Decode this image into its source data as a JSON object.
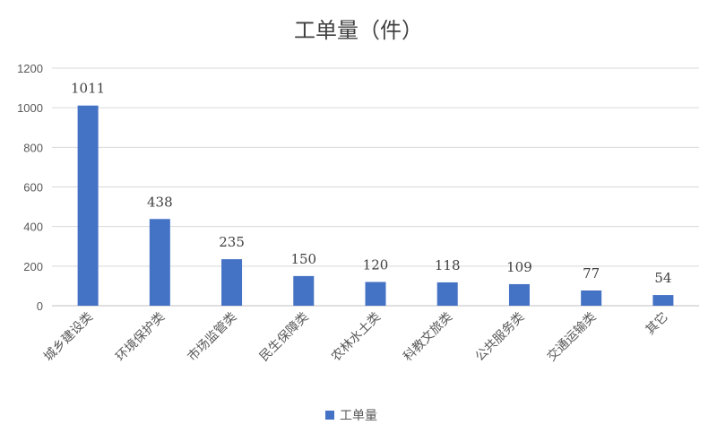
{
  "chart_data": {
    "type": "bar",
    "title": "工单量（件）",
    "categories": [
      "城乡建设类",
      "环境保护类",
      "市场监管类",
      "民生保障类",
      "农林水土类",
      "科教文旅类",
      "公共服务类",
      "交通运输类",
      "其它"
    ],
    "series": [
      {
        "name": "工单量",
        "values": [
          1011,
          438,
          235,
          150,
          120,
          118,
          109,
          77,
          54
        ]
      }
    ],
    "ylim": [
      0,
      1200
    ],
    "yticks": [
      0,
      200,
      400,
      600,
      800,
      1000,
      1200
    ],
    "grid": true,
    "legend_position": "bottom",
    "bar_color": "#4472C4"
  }
}
